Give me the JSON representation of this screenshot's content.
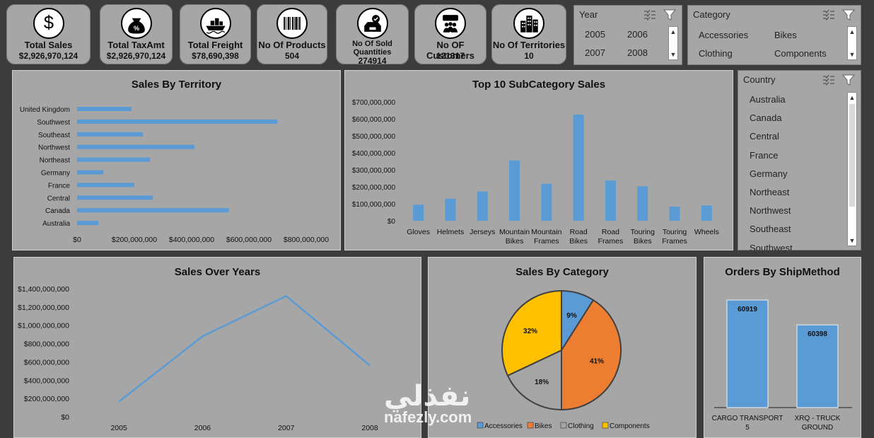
{
  "kpis": [
    {
      "label": "Total Sales",
      "value": "$2,926,970,124",
      "icon": "dollar-icon"
    },
    {
      "label": "Total TaxAmt",
      "value": "$2,926,970,124",
      "icon": "money-bag-icon"
    },
    {
      "label": "Total Freight",
      "value": "$78,690,398",
      "icon": "ship-icon"
    },
    {
      "label": "No Of Products",
      "value": "504",
      "icon": "barcode-icon"
    },
    {
      "label": "No Of Sold Quantities",
      "value": "274914",
      "icon": "box-check-icon"
    },
    {
      "label": "No OF Customers",
      "value": "121317",
      "icon": "customers-icon"
    },
    {
      "label": "No Of Territories",
      "value": "10",
      "icon": "buildings-icon"
    }
  ],
  "slicers": {
    "year": {
      "title": "Year",
      "items": [
        "2005",
        "2006",
        "2007",
        "2008"
      ]
    },
    "category": {
      "title": "Category",
      "items": [
        "Accessories",
        "Bikes",
        "Clothing",
        "Components"
      ]
    },
    "country": {
      "title": "Country",
      "items": [
        "Australia",
        "Canada",
        "Central",
        "France",
        "Germany",
        "Northeast",
        "Northwest",
        "Southeast",
        "Southwest"
      ]
    }
  },
  "chart_data": [
    {
      "type": "bar",
      "orientation": "horizontal",
      "title": "Sales By Territory",
      "categories": [
        "United Kingdom",
        "Southwest",
        "Southeast",
        "Northwest",
        "Northeast",
        "Germany",
        "France",
        "Central",
        "Canada",
        "Australia"
      ],
      "values": [
        190000000,
        700000000,
        230000000,
        410000000,
        255000000,
        92000000,
        200000000,
        265000000,
        530000000,
        75000000
      ],
      "xlim": [
        0,
        800000000
      ],
      "xticks": [
        "$0",
        "$200,000,000",
        "$400,000,000",
        "$600,000,000",
        "$800,000,000"
      ],
      "color": "#5b9bd5"
    },
    {
      "type": "bar",
      "title": "Top 10 SubCategory Sales",
      "categories": [
        "Gloves",
        "Helmets",
        "Jerseys",
        "Mountain Bikes",
        "Mountain Frames",
        "Road Bikes",
        "Road Frames",
        "Touring Bikes",
        "Touring Frames",
        "Wheels"
      ],
      "values": [
        95000000,
        130000000,
        172000000,
        355000000,
        218000000,
        625000000,
        237000000,
        203000000,
        83000000,
        90000000
      ],
      "ylim": [
        0,
        700000000
      ],
      "yticks": [
        "$0",
        "$100,000,000",
        "$200,000,000",
        "$300,000,000",
        "$400,000,000",
        "$500,000,000",
        "$600,000,000",
        "$700,000,000"
      ],
      "color": "#5b9bd5"
    },
    {
      "type": "line",
      "title": "Sales Over Years",
      "x": [
        "2005",
        "2006",
        "2007",
        "2008"
      ],
      "values": [
        165000000,
        880000000,
        1320000000,
        560000000
      ],
      "ylim": [
        0,
        1400000000
      ],
      "yticks": [
        "$0",
        "$200,000,000",
        "$400,000,000",
        "$600,000,000",
        "$800,000,000",
        "$1,000,000,000",
        "$1,200,000,000",
        "$1,400,000,000"
      ],
      "color": "#5b9bd5"
    },
    {
      "type": "pie",
      "title": "Sales By Category",
      "slices": [
        {
          "name": "Accessories",
          "value": 9,
          "label": "9%",
          "color": "#5b9bd5"
        },
        {
          "name": "Bikes",
          "value": 41,
          "label": "41%",
          "color": "#ed7d31"
        },
        {
          "name": "Clothing",
          "value": 18,
          "label": "18%",
          "color": "#a5a5a5"
        },
        {
          "name": "Components",
          "value": 32,
          "label": "32%",
          "color": "#ffc000"
        }
      ],
      "legend": "bottom"
    },
    {
      "type": "bar",
      "title": "Orders By ShipMethod",
      "categories": [
        "CARGO TRANSPORT 5",
        "XRQ - TRUCK GROUND"
      ],
      "category_lines": [
        [
          "CARGO TRANSPORT",
          "5"
        ],
        [
          "XRQ - TRUCK",
          "GROUND"
        ]
      ],
      "values": [
        60919,
        60398
      ],
      "labels": [
        "60919",
        "60398"
      ],
      "color": "#5b9bd5"
    }
  ],
  "watermark": {
    "arabic": "نفذلي",
    "latin": "nafezly.com"
  }
}
